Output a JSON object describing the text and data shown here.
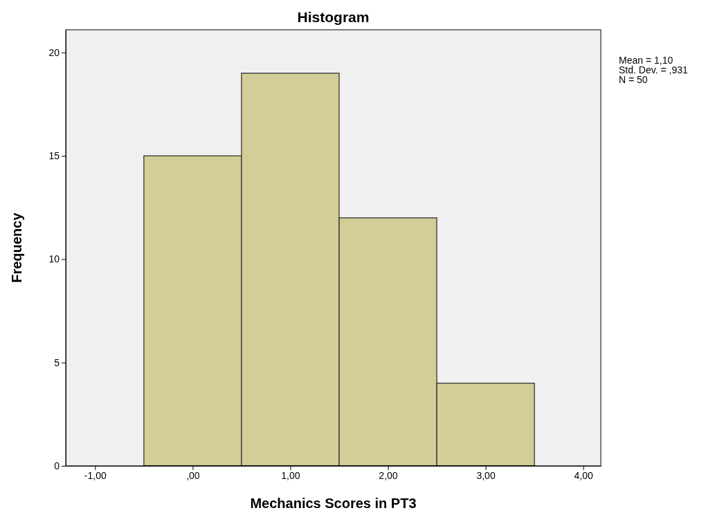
{
  "chart_data": {
    "type": "histogram",
    "title": "Histogram",
    "xlabel": "Mechanics Scores in PT3",
    "ylabel": "Frequency",
    "bins": [
      -0.5,
      0.5,
      1.5,
      2.5,
      3.5
    ],
    "values": [
      15,
      19,
      12,
      4
    ],
    "color": "#d3ce97",
    "xlim": [
      -1.3,
      4.18
    ],
    "xticks": [
      {
        "value": -1,
        "label": "-1,00"
      },
      {
        "value": 0,
        "label": ",00"
      },
      {
        "value": 1,
        "label": "1,00"
      },
      {
        "value": 2,
        "label": "2,00"
      },
      {
        "value": 3,
        "label": "3,00"
      },
      {
        "value": 4,
        "label": "4,00"
      }
    ],
    "ylim": [
      0,
      21.1
    ],
    "yticks": [
      0,
      5,
      10,
      15,
      20
    ],
    "grid": false,
    "annotations": [
      "Mean = 1,10",
      "Std. Dev. = ,931",
      "N = 50"
    ]
  }
}
